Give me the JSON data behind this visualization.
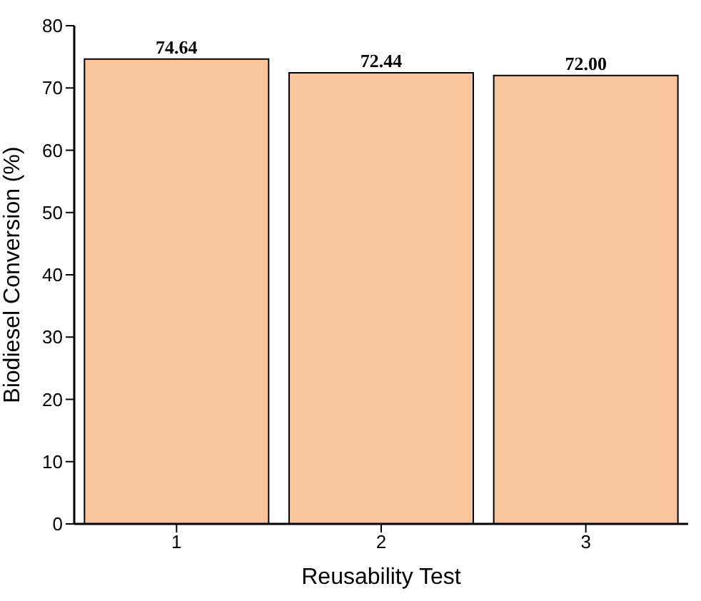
{
  "chart_data": {
    "type": "bar",
    "xlabel": "Reusability Test",
    "ylabel": "Biodiesel Conversion (%)",
    "categories": [
      "1",
      "2",
      "3"
    ],
    "values": [
      74.64,
      72.44,
      72.0
    ],
    "value_labels": [
      "74.64",
      "72.44",
      "72.00"
    ],
    "color": "#f9c499",
    "ylim": [
      0,
      80
    ],
    "yticks": [
      0,
      10,
      20,
      30,
      40,
      50,
      60,
      70,
      80
    ],
    "grid": false,
    "legend": false
  }
}
